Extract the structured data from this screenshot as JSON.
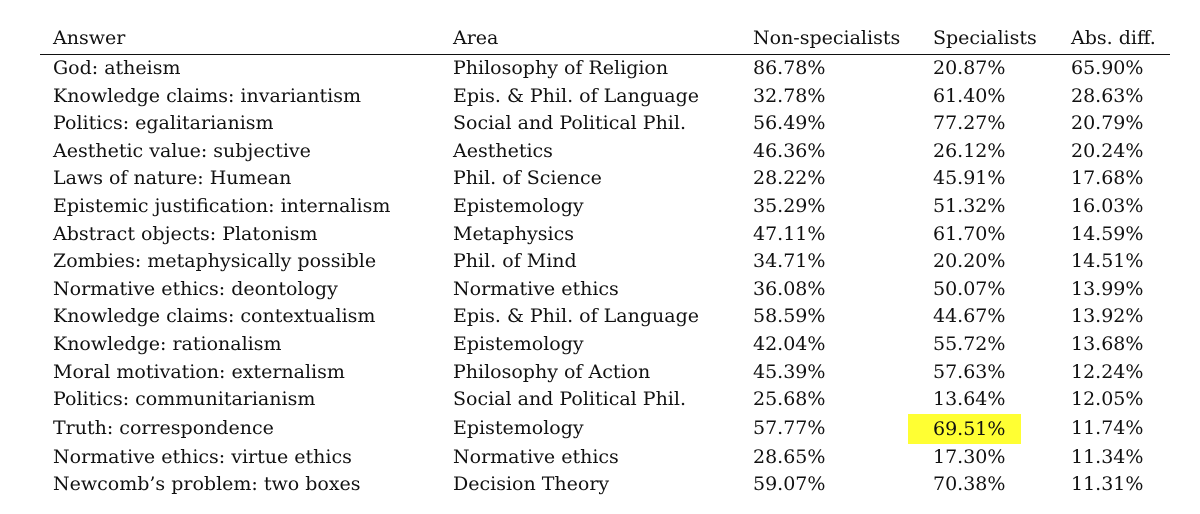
{
  "table": {
    "headers": [
      "Answer",
      "Area",
      "Non-specialists",
      "Specialists",
      "Abs. diff."
    ],
    "highlight_color": "#ffff33",
    "rows": [
      {
        "answer": "God: atheism",
        "area": "Philosophy of Religion",
        "non_specialists": "86.78%",
        "specialists": "20.87%",
        "abs_diff": "65.90%"
      },
      {
        "answer": "Knowledge claims: invariantism",
        "area": "Epis. & Phil. of Language",
        "non_specialists": "32.78%",
        "specialists": "61.40%",
        "abs_diff": "28.63%"
      },
      {
        "answer": "Politics: egalitarianism",
        "area": "Social and Political Phil.",
        "non_specialists": "56.49%",
        "specialists": "77.27%",
        "abs_diff": "20.79%"
      },
      {
        "answer": "Aesthetic value: subjective",
        "area": "Aesthetics",
        "non_specialists": "46.36%",
        "specialists": "26.12%",
        "abs_diff": "20.24%"
      },
      {
        "answer": "Laws of nature: Humean",
        "area": "Phil. of Science",
        "non_specialists": "28.22%",
        "specialists": "45.91%",
        "abs_diff": "17.68%"
      },
      {
        "answer": "Epistemic justification: internalism",
        "area": "Epistemology",
        "non_specialists": "35.29%",
        "specialists": "51.32%",
        "abs_diff": "16.03%"
      },
      {
        "answer": "Abstract objects: Platonism",
        "area": "Metaphysics",
        "non_specialists": "47.11%",
        "specialists": "61.70%",
        "abs_diff": "14.59%"
      },
      {
        "answer": "Zombies: metaphysically possible",
        "area": "Phil. of Mind",
        "non_specialists": "34.71%",
        "specialists": "20.20%",
        "abs_diff": "14.51%"
      },
      {
        "answer": "Normative ethics: deontology",
        "area": "Normative ethics",
        "non_specialists": "36.08%",
        "specialists": "50.07%",
        "abs_diff": "13.99%"
      },
      {
        "answer": "Knowledge claims: contextualism",
        "area": "Epis. & Phil. of Language",
        "non_specialists": "58.59%",
        "specialists": "44.67%",
        "abs_diff": "13.92%"
      },
      {
        "answer": "Knowledge: rationalism",
        "area": "Epistemology",
        "non_specialists": "42.04%",
        "specialists": "55.72%",
        "abs_diff": "13.68%"
      },
      {
        "answer": "Moral motivation: externalism",
        "area": "Philosophy of Action",
        "non_specialists": "45.39%",
        "specialists": "57.63%",
        "abs_diff": "12.24%"
      },
      {
        "answer": "Politics: communitarianism",
        "area": "Social and Political Phil.",
        "non_specialists": "25.68%",
        "specialists": "13.64%",
        "abs_diff": "12.05%"
      },
      {
        "answer": "Truth: correspondence",
        "area": "Epistemology",
        "non_specialists": "57.77%",
        "specialists": "69.51%",
        "abs_diff": "11.74%",
        "highlight": "specialists"
      },
      {
        "answer": "Normative ethics: virtue ethics",
        "area": "Normative ethics",
        "non_specialists": "28.65%",
        "specialists": "17.30%",
        "abs_diff": "11.34%"
      },
      {
        "answer": "Newcomb’s problem: two boxes",
        "area": "Decision Theory",
        "non_specialists": "59.07%",
        "specialists": "70.38%",
        "abs_diff": "11.31%"
      }
    ]
  }
}
